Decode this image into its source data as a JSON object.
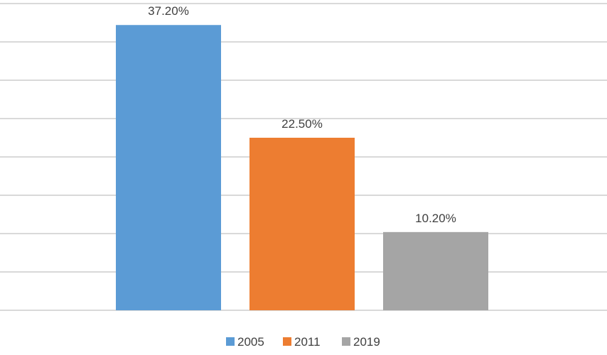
{
  "chart_data": {
    "type": "bar",
    "categories": [
      "2005",
      "2011",
      "2019"
    ],
    "values": [
      37.2,
      22.5,
      10.2
    ],
    "data_labels": [
      "37.20%",
      "22.50%",
      "10.20%"
    ],
    "colors": [
      "#5b9bd5",
      "#ed7d31",
      "#a5a5a5"
    ],
    "title": "",
    "xlabel": "",
    "ylabel": "",
    "ylim": [
      0,
      40
    ],
    "grid": true,
    "legend": {
      "placement": "bottom",
      "entries": [
        {
          "label": "2005",
          "color": "#5b9bd5"
        },
        {
          "label": "2011",
          "color": "#ed7d31"
        },
        {
          "label": "2019",
          "color": "#a5a5a5"
        }
      ]
    }
  }
}
